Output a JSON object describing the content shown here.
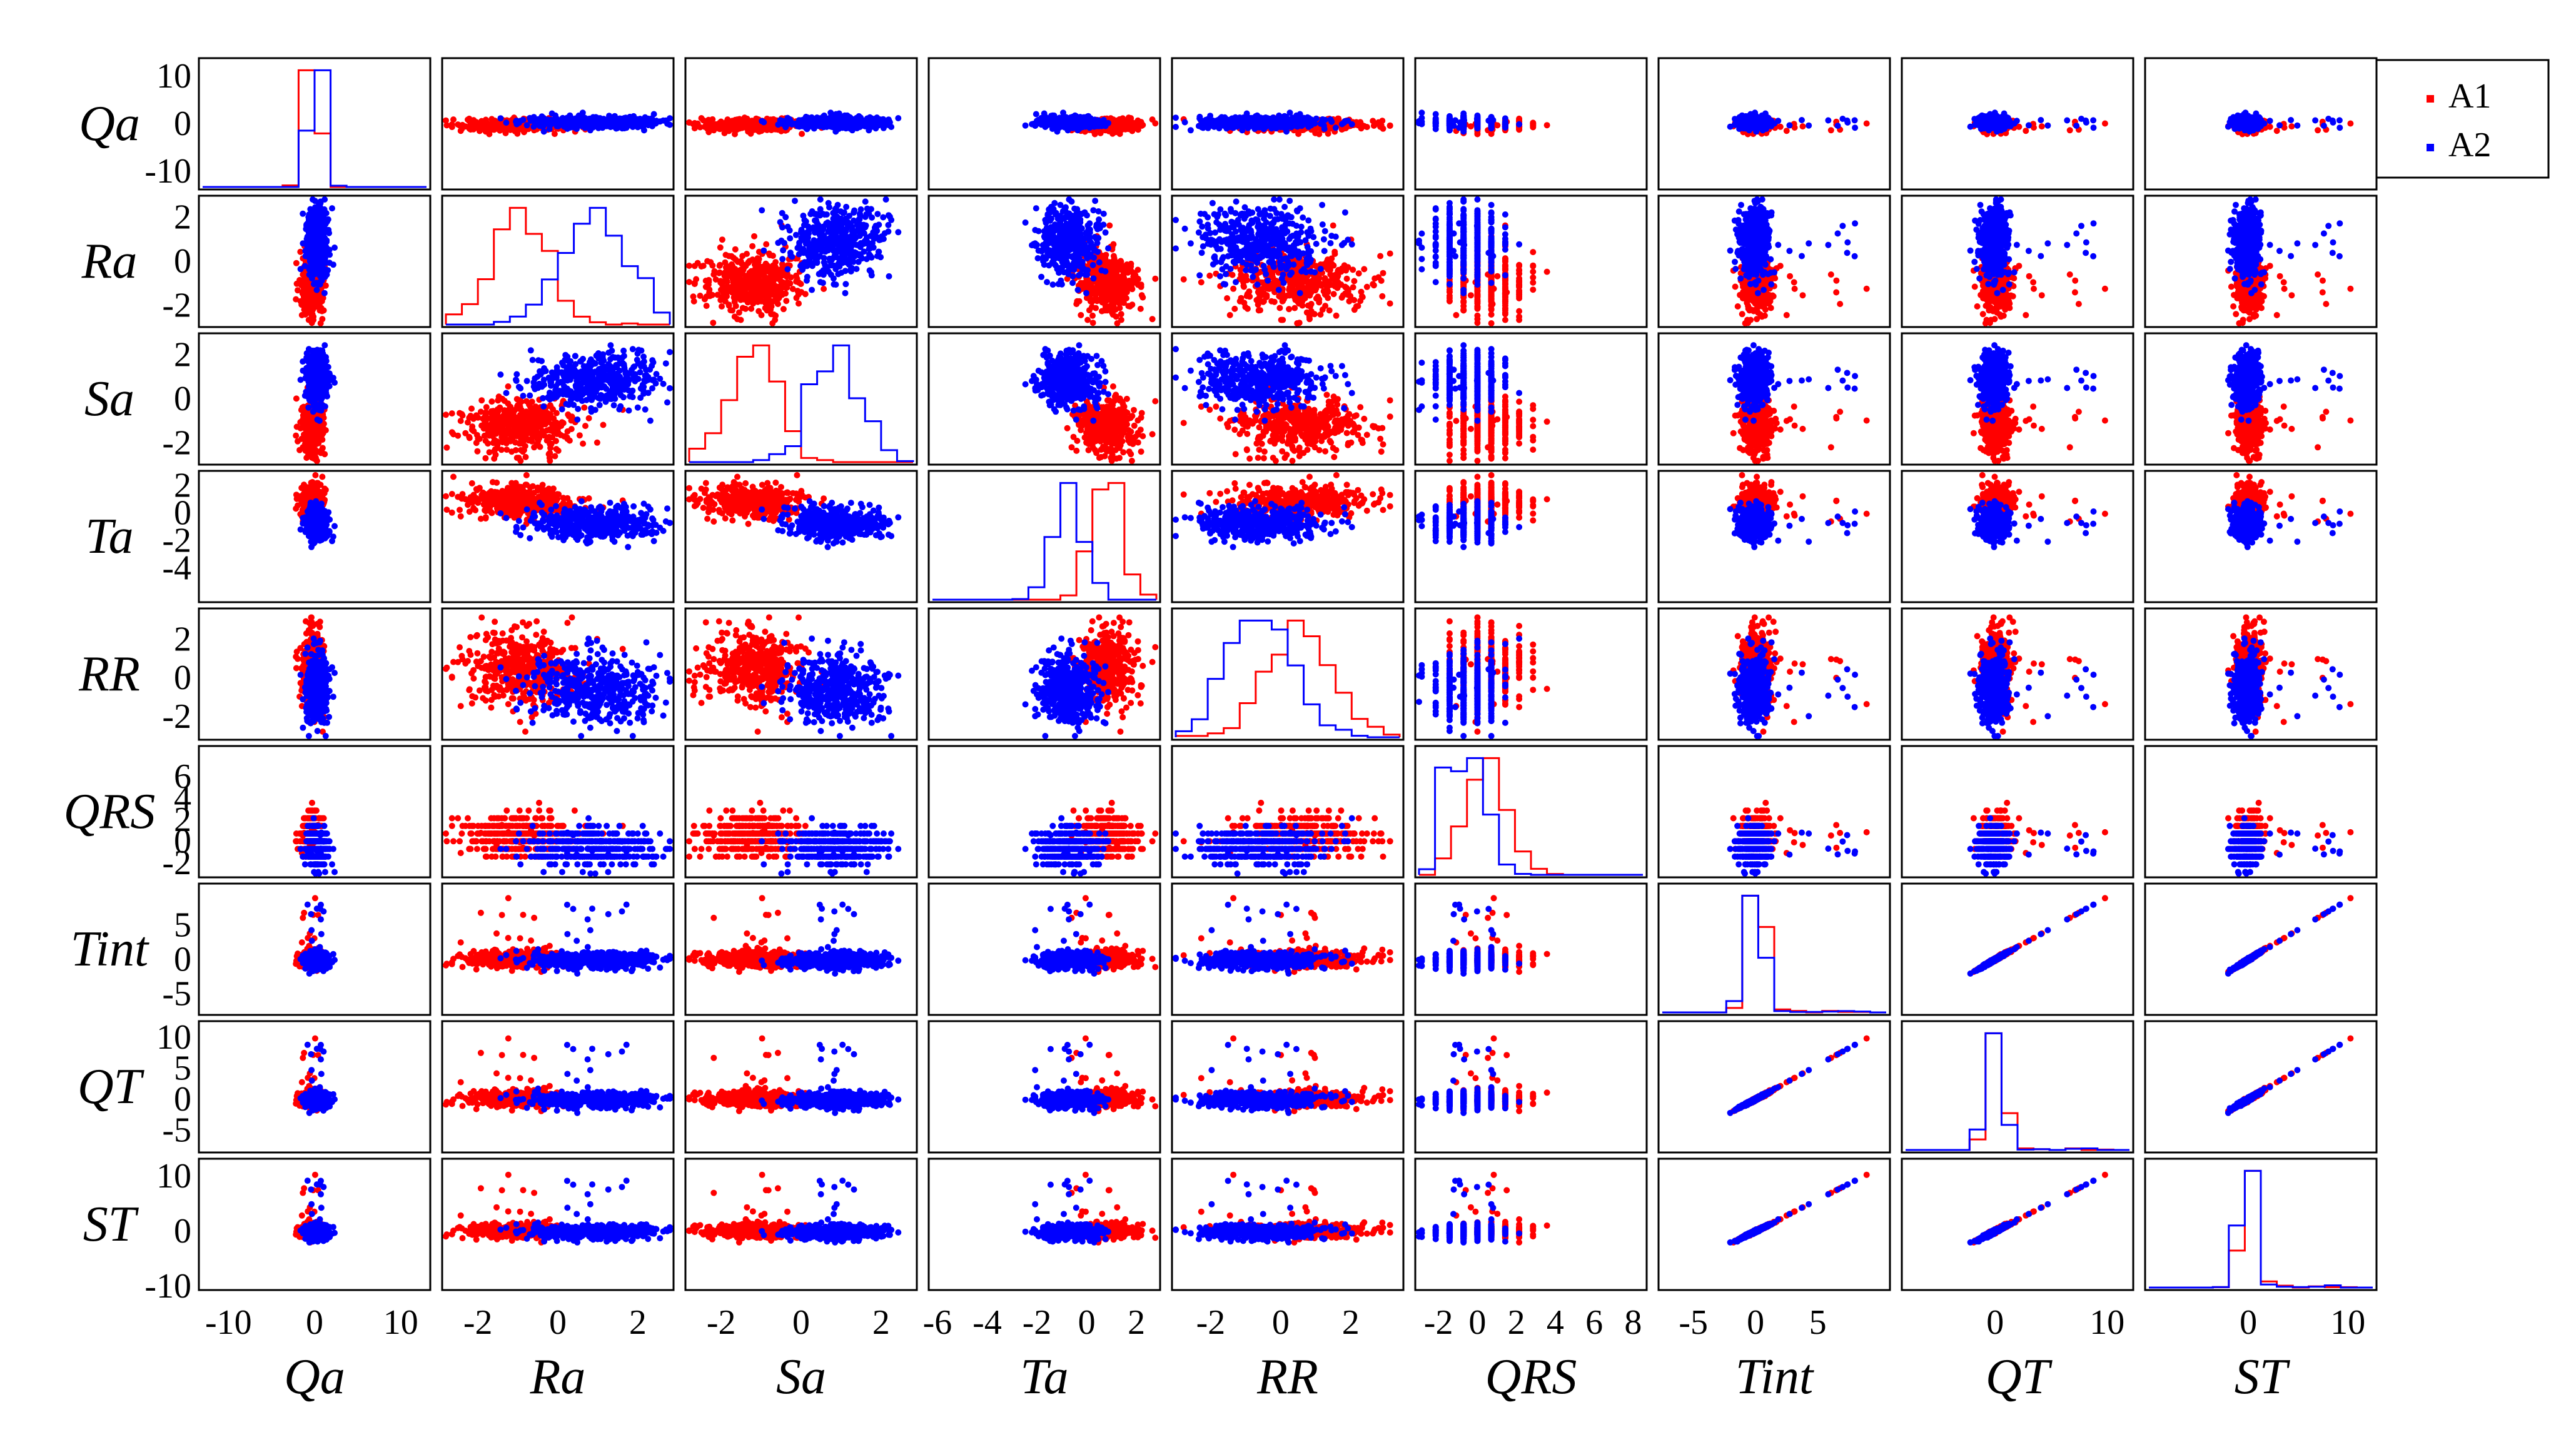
{
  "chart_data": {
    "type": "scatter-matrix",
    "title": "",
    "variables": [
      "Qa",
      "Ra",
      "Sa",
      "Ta",
      "RR",
      "QRS",
      "Tint",
      "QT",
      "ST"
    ],
    "axis_ranges": {
      "Qa": [
        -13,
        13
      ],
      "Ra": [
        -2.8,
        2.8
      ],
      "Sa": [
        -2.8,
        2.8
      ],
      "Ta": [
        -6.2,
        2.8
      ],
      "RR": [
        -3.0,
        3.4
      ],
      "QRS": [
        -3.0,
        8.5
      ],
      "Tint": [
        -7.5,
        10.5
      ],
      "QT": [
        -8.0,
        12.0
      ],
      "ST": [
        -10.0,
        12.5
      ]
    },
    "y_ticks": {
      "Qa": [
        {
          "v": 10,
          "label": "10"
        },
        {
          "v": 0,
          "label": "0"
        },
        {
          "v": -10,
          "label": "-10"
        }
      ],
      "Ra": [
        {
          "v": 2,
          "label": "2"
        },
        {
          "v": 0,
          "label": "0"
        },
        {
          "v": -2,
          "label": "-2"
        }
      ],
      "Sa": [
        {
          "v": 2,
          "label": "2"
        },
        {
          "v": 0,
          "label": "0"
        },
        {
          "v": -2,
          "label": "-2"
        }
      ],
      "Ta": [
        {
          "v": 2,
          "label": "2"
        },
        {
          "v": 0,
          "label": "0"
        },
        {
          "v": -2,
          "label": "-2"
        },
        {
          "v": -4,
          "label": "-4"
        }
      ],
      "RR": [
        {
          "v": 2,
          "label": "2"
        },
        {
          "v": 0,
          "label": "0"
        },
        {
          "v": -2,
          "label": "-2"
        }
      ],
      "QRS": [
        {
          "v": 6,
          "label": "6"
        },
        {
          "v": 4,
          "label": "4"
        },
        {
          "v": 2,
          "label": "2"
        },
        {
          "v": 0,
          "label": "0"
        },
        {
          "v": -2,
          "label": "-2"
        }
      ],
      "Tint": [
        {
          "v": 5,
          "label": "5"
        },
        {
          "v": 0,
          "label": "0"
        },
        {
          "v": -5,
          "label": "-5"
        }
      ],
      "QT": [
        {
          "v": 10,
          "label": "10"
        },
        {
          "v": 5,
          "label": "5"
        },
        {
          "v": 0,
          "label": "0"
        },
        {
          "v": -5,
          "label": "-5"
        }
      ],
      "ST": [
        {
          "v": 10,
          "label": "10"
        },
        {
          "v": 0,
          "label": "0"
        },
        {
          "v": -10,
          "label": "-10"
        }
      ]
    },
    "x_ticks": {
      "Qa": [
        {
          "v": -10,
          "label": "-10"
        },
        {
          "v": 0,
          "label": "0"
        },
        {
          "v": 10,
          "label": "10"
        }
      ],
      "Ra": [
        {
          "v": -2,
          "label": "-2"
        },
        {
          "v": 0,
          "label": "0"
        },
        {
          "v": 2,
          "label": "2"
        }
      ],
      "Sa": [
        {
          "v": -2,
          "label": "-2"
        },
        {
          "v": 0,
          "label": "0"
        },
        {
          "v": 2,
          "label": "2"
        }
      ],
      "Ta": [
        {
          "v": -6,
          "label": "-6"
        },
        {
          "v": -4,
          "label": "-4"
        },
        {
          "v": -2,
          "label": "-2"
        },
        {
          "v": 0,
          "label": "0"
        },
        {
          "v": 2,
          "label": "2"
        }
      ],
      "RR": [
        {
          "v": -2,
          "label": "-2"
        },
        {
          "v": 0,
          "label": "0"
        },
        {
          "v": 2,
          "label": "2"
        }
      ],
      "QRS": [
        {
          "v": -2,
          "label": "-2"
        },
        {
          "v": 0,
          "label": "0"
        },
        {
          "v": 2,
          "label": "2"
        },
        {
          "v": 4,
          "label": "4"
        },
        {
          "v": 6,
          "label": "6"
        },
        {
          "v": 8,
          "label": "8"
        }
      ],
      "Tint": [
        {
          "v": -5,
          "label": "-5"
        },
        {
          "v": 0,
          "label": "0"
        },
        {
          "v": 5,
          "label": "5"
        }
      ],
      "QT": [
        {
          "v": 0,
          "label": "0"
        },
        {
          "v": 10,
          "label": "10"
        }
      ],
      "ST": [
        {
          "v": 0,
          "label": "0"
        },
        {
          "v": 10,
          "label": "10"
        }
      ]
    },
    "series": [
      {
        "name": "A1",
        "color": "#ff0000"
      },
      {
        "name": "A2",
        "color": "#0000ff"
      }
    ],
    "group_stats": {
      "A1": {
        "means": {
          "Qa": -0.3,
          "Ra": -1.0,
          "Sa": -1.2,
          "Ta": 0.8,
          "RR": 0.5,
          "QRS": 0.5,
          "Tint": 0.1,
          "QT": 0.0,
          "ST": 0.0
        },
        "sds": {
          "Qa": 0.6,
          "Ra": 0.7,
          "Sa": 0.6,
          "Ta": 0.6,
          "RR": 1.0,
          "QRS": 0.9,
          "Tint": 0.5,
          "QT": 0.5,
          "ST": 0.5
        }
      },
      "A2": {
        "means": {
          "Qa": 0.3,
          "Ra": 0.8,
          "Sa": 0.9,
          "Ta": -0.7,
          "RR": -0.6,
          "QRS": -0.5,
          "Tint": -0.1,
          "QT": -0.1,
          "ST": -0.1
        },
        "sds": {
          "Qa": 0.6,
          "Ra": 0.8,
          "Sa": 0.6,
          "Ta": 0.6,
          "RR": 0.9,
          "QRS": 0.9,
          "Tint": 0.6,
          "QT": 0.6,
          "ST": 0.6
        }
      }
    },
    "legend": {
      "position": "top-right",
      "entries": [
        "A1",
        "A2"
      ]
    }
  },
  "legend": {
    "a1_label": "A1",
    "a2_label": "A2"
  }
}
